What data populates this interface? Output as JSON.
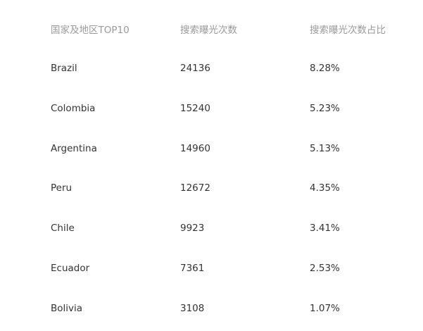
{
  "table": {
    "headers": [
      "国家及地区TOP10",
      "搜索曝光次数",
      "搜索曝光次数占比"
    ],
    "rows": [
      [
        "Brazil",
        "24136",
        "8.28%"
      ],
      [
        "Colombia",
        "15240",
        "5.23%"
      ],
      [
        "Argentina",
        "14960",
        "5.13%"
      ],
      [
        "Peru",
        "12672",
        "4.35%"
      ],
      [
        "Chile",
        "9923",
        "3.41%"
      ],
      [
        "Ecuador",
        "7361",
        "2.53%"
      ],
      [
        "Bolivia",
        "3108",
        "1.07%"
      ]
    ]
  }
}
